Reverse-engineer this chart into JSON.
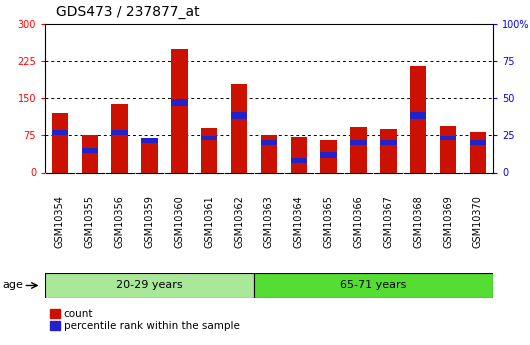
{
  "title": "GDS473 / 237877_at",
  "samples": [
    "GSM10354",
    "GSM10355",
    "GSM10356",
    "GSM10359",
    "GSM10360",
    "GSM10361",
    "GSM10362",
    "GSM10363",
    "GSM10364",
    "GSM10365",
    "GSM10366",
    "GSM10367",
    "GSM10368",
    "GSM10369",
    "GSM10370"
  ],
  "count": [
    120,
    75,
    138,
    68,
    250,
    90,
    178,
    75,
    72,
    65,
    92,
    88,
    215,
    95,
    82
  ],
  "percentile_bottom": [
    75,
    40,
    75,
    60,
    135,
    65,
    108,
    55,
    20,
    30,
    55,
    55,
    108,
    65,
    55
  ],
  "percentile_top": [
    85,
    50,
    85,
    70,
    148,
    73,
    122,
    65,
    30,
    42,
    65,
    65,
    123,
    73,
    65
  ],
  "group1_count": 7,
  "group2_count": 8,
  "group1_label": "20-29 years",
  "group2_label": "65-71 years",
  "age_label": "age",
  "left_ylim": [
    0,
    300
  ],
  "right_ylim": [
    0,
    100
  ],
  "left_yticks": [
    0,
    75,
    150,
    225,
    300
  ],
  "right_yticks": [
    0,
    25,
    50,
    75,
    100
  ],
  "bar_color": "#cc1100",
  "blue_color": "#2222cc",
  "group1_color": "#aae899",
  "group2_color": "#55dd33",
  "xticklabel_bg": "#cccccc",
  "legend_count": "count",
  "legend_percentile": "percentile rank within the sample",
  "title_fontsize": 10,
  "tick_fontsize": 7,
  "bar_width": 0.55
}
